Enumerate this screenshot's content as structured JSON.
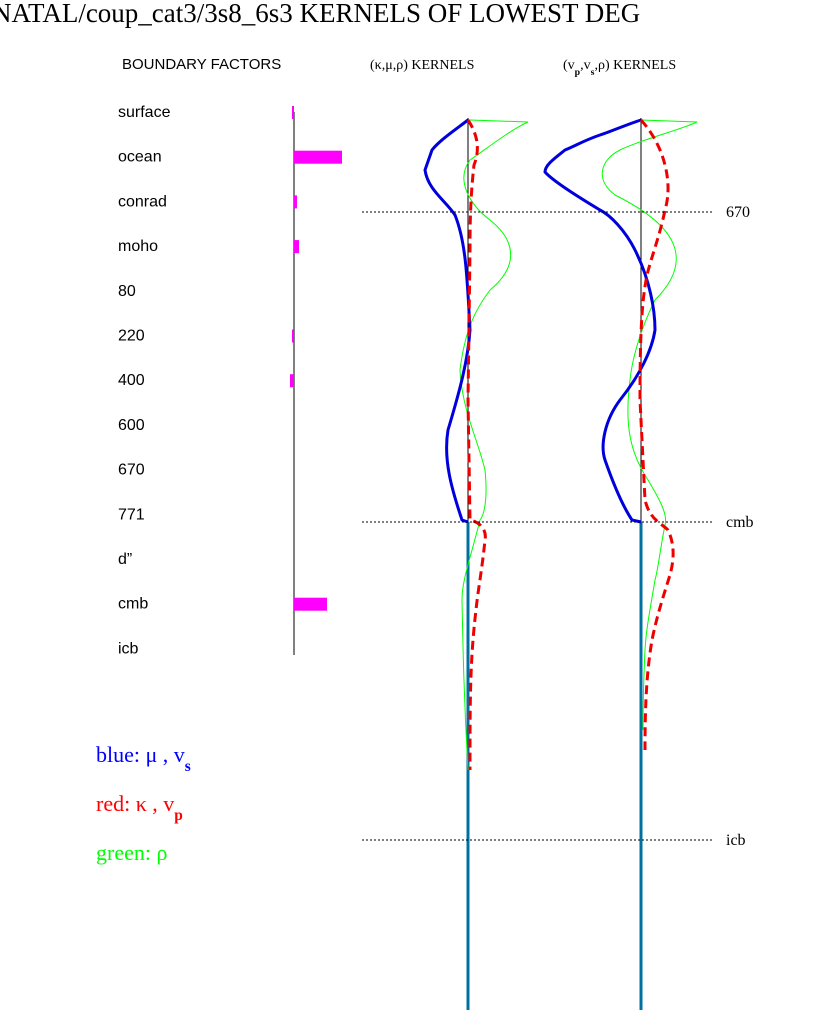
{
  "title": "NATAL/coup_cat3/3s8_6s3 KERNELS OF LOWEST DEG",
  "headers": {
    "boundary": "BOUNDARY FACTORS",
    "kernels_1": [
      "(κ,μ,ρ)  KERNELS"
    ],
    "kernels_2": [
      "(v",
      "p",
      ",v",
      "s",
      ",ρ)  KERNELS"
    ]
  },
  "boundaries": [
    {
      "label": "surface",
      "factor": -2
    },
    {
      "label": "ocean",
      "factor": 48
    },
    {
      "label": "conrad",
      "factor": 3
    },
    {
      "label": "moho",
      "factor": 5
    },
    {
      "label": "80",
      "factor": null
    },
    {
      "label": "220",
      "factor": -2
    },
    {
      "label": "400",
      "factor": -4
    },
    {
      "label": "600",
      "factor": null
    },
    {
      "label": "670",
      "factor": null
    },
    {
      "label": "771",
      "factor": null
    },
    {
      "label": "d”",
      "factor": null
    },
    {
      "label": "cmb",
      "factor": 33
    },
    {
      "label": "icb",
      "factor": null
    }
  ],
  "depth_markers": [
    "670",
    "cmb",
    "icb"
  ],
  "legend": [
    {
      "color": "#0000ff",
      "parts": [
        "blue:  μ , v",
        "s"
      ]
    },
    {
      "color": "#ff0000",
      "parts": [
        "red:  κ , v",
        "p"
      ]
    },
    {
      "color": "#00ff00",
      "parts": [
        "green:  ρ"
      ]
    }
  ]
}
